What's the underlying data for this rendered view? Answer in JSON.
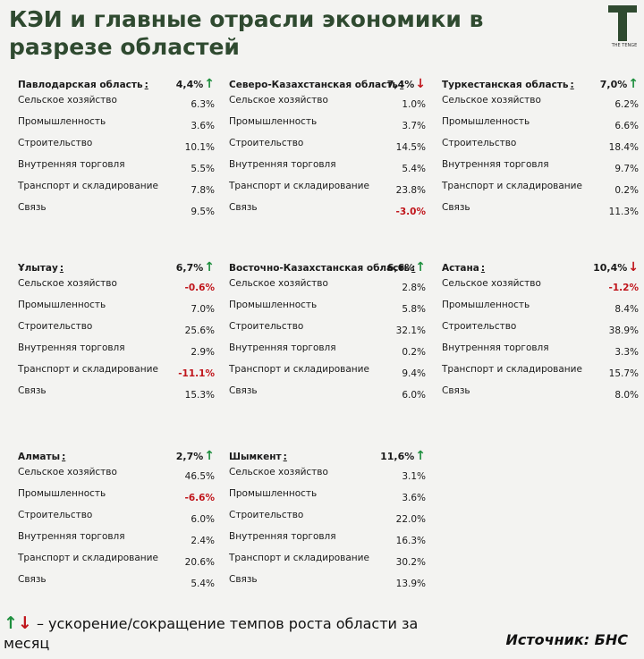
{
  "title": "КЭИ и главные отрасли экономики в разрезе областей",
  "logo_text": "THE TENGE",
  "regions": [
    {
      "name": "Павлодарская область",
      "total": "4,4%",
      "trend": "up",
      "sectors": [
        {
          "label": "Сельское хозяйство",
          "value": "6.3%"
        },
        {
          "label": "Промышленность",
          "value": "3.6%"
        },
        {
          "label": "Строительство",
          "value": "10.1%"
        },
        {
          "label": "Внутренняя торговля",
          "value": "5.5%"
        },
        {
          "label": "Транспорт и складирование",
          "value": "7.8%"
        },
        {
          "label": "Связь",
          "value": "9.5%"
        }
      ]
    },
    {
      "name": "Северо-Казахстанская область",
      "total": "7,4%",
      "trend": "down",
      "sectors": [
        {
          "label": "Сельское хозяйство",
          "value": "1.0%"
        },
        {
          "label": "Промышленность",
          "value": "3.7%"
        },
        {
          "label": "Строительство",
          "value": "14.5%"
        },
        {
          "label": "Внутренняя торговля",
          "value": "5.4%"
        },
        {
          "label": "Транспорт и складирование",
          "value": "23.8%"
        },
        {
          "label": "Связь",
          "value": "-3.0%"
        }
      ]
    },
    {
      "name": "Туркестанская область",
      "total": "7,0%",
      "trend": "up",
      "sectors": [
        {
          "label": "Сельское хозяйство",
          "value": "6.2%"
        },
        {
          "label": "Промышленность",
          "value": "6.6%"
        },
        {
          "label": "Строительство",
          "value": "18.4%"
        },
        {
          "label": "Внутренняя торговля",
          "value": "9.7%"
        },
        {
          "label": "Транспорт и складирование",
          "value": "0.2%"
        },
        {
          "label": "Связь",
          "value": "11.3%"
        }
      ]
    },
    {
      "name": "Ұлытау",
      "total": "6,7%",
      "trend": "up",
      "sectors": [
        {
          "label": "Сельское хозяйство",
          "value": "-0.6%"
        },
        {
          "label": "Промышленность",
          "value": "7.0%"
        },
        {
          "label": "Строительство",
          "value": "25.6%"
        },
        {
          "label": "Внутренняя торговля",
          "value": "2.9%"
        },
        {
          "label": "Транспорт и складирование",
          "value": "-11.1%"
        },
        {
          "label": "Связь",
          "value": "15.3%"
        }
      ]
    },
    {
      "name": "Восточно-Казахстанская область",
      "total": "6,6%",
      "trend": "up",
      "sectors": [
        {
          "label": "Сельское хозяйство",
          "value": "2.8%"
        },
        {
          "label": "Промышленность",
          "value": "5.8%"
        },
        {
          "label": "Строительство",
          "value": "32.1%"
        },
        {
          "label": "Внутренняя торговля",
          "value": "0.2%"
        },
        {
          "label": "Транспорт и складирование",
          "value": "9.4%"
        },
        {
          "label": "Связь",
          "value": "6.0%"
        }
      ]
    },
    {
      "name": "Астана",
      "total": "10,4%",
      "trend": "down",
      "sectors": [
        {
          "label": "Сельское хозяйство",
          "value": "-1.2%"
        },
        {
          "label": "Промышленность",
          "value": "8.4%"
        },
        {
          "label": "Строительство",
          "value": "38.9%"
        },
        {
          "label": "Внутренняя торговля",
          "value": "3.3%"
        },
        {
          "label": "Транспорт и складирование",
          "value": "15.7%"
        },
        {
          "label": "Связь",
          "value": "8.0%"
        }
      ]
    },
    {
      "name": "Алматы",
      "total": "2,7%",
      "trend": "up",
      "sectors": [
        {
          "label": "Сельское хозяйство",
          "value": "46.5%"
        },
        {
          "label": "Промышленность",
          "value": "-6.6%"
        },
        {
          "label": "Строительство",
          "value": "6.0%"
        },
        {
          "label": "Внутренняя торговля",
          "value": "2.4%"
        },
        {
          "label": "Транспорт и складирование",
          "value": "20.6%"
        },
        {
          "label": "Связь",
          "value": "5.4%"
        }
      ]
    },
    {
      "name": "Шымкент",
      "total": "11,6%",
      "trend": "up",
      "sectors": [
        {
          "label": "Сельское хозяйство",
          "value": "3.1%"
        },
        {
          "label": "Промышленность",
          "value": "3.6%"
        },
        {
          "label": "Строительство",
          "value": "22.0%"
        },
        {
          "label": "Внутренняя торговля",
          "value": "16.3%"
        },
        {
          "label": "Транспорт и складирование",
          "value": "30.2%"
        },
        {
          "label": "Связь",
          "value": "13.9%"
        }
      ]
    }
  ],
  "footer": {
    "legend": "– ускорение/сокращение темпов роста области за месяц",
    "source": "Источник: БНС"
  }
}
